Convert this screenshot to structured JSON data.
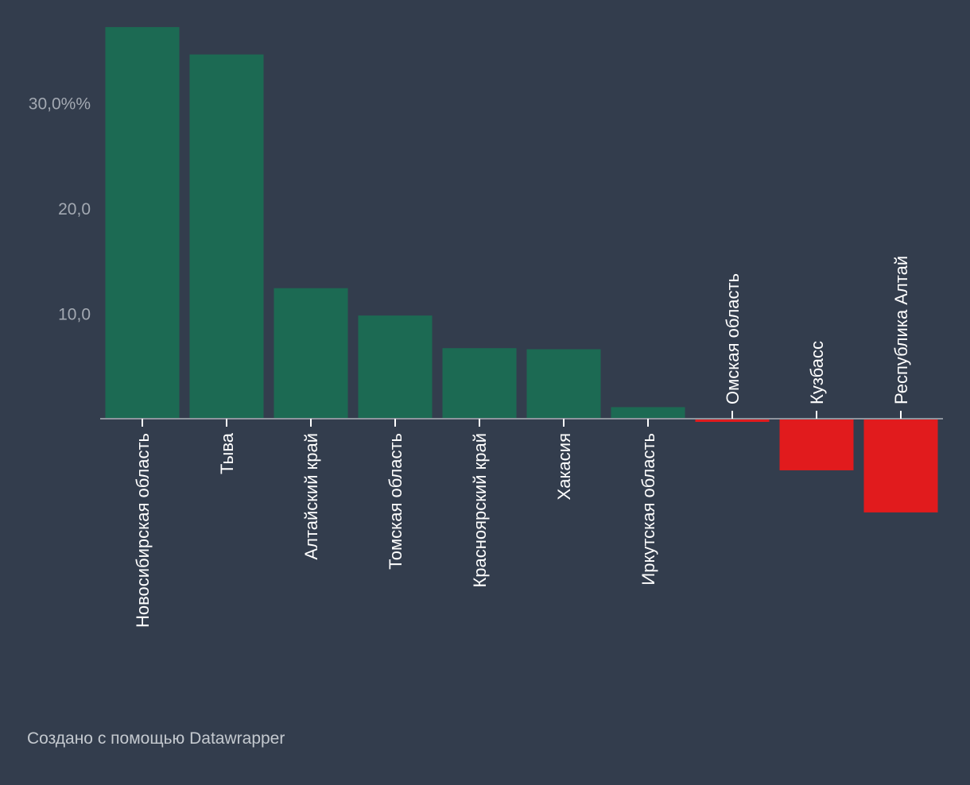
{
  "chart_data": {
    "type": "bar",
    "title": "",
    "xlabel": "",
    "ylabel": "",
    "ylim": [
      -9.5,
      37.5
    ],
    "grid": false,
    "legend": "none",
    "y_ticks": [
      {
        "value": 10,
        "label": "10,0"
      },
      {
        "value": 20,
        "label": "20,0"
      },
      {
        "value": 30,
        "label": "30,0%%"
      }
    ],
    "categories": [
      "Новосибирская область",
      "Тыва",
      "Алтайский край",
      "Томская область",
      "Красноярский край",
      "Хакасия",
      "Иркутская область",
      "Омская область",
      "Кузбасс",
      "Республика Алтай"
    ],
    "values": [
      37.2,
      34.6,
      12.4,
      9.8,
      6.7,
      6.6,
      1.1,
      -0.3,
      -4.9,
      -8.9
    ]
  },
  "colors": {
    "background": "#333d4d",
    "positive": "#1c6a53",
    "negative": "#e11b1d",
    "axis": "#8e959e",
    "tick_text": "#a3a9b2",
    "label_text": "#ffffff"
  },
  "footer": {
    "credit": "Создано с помощью Datawrapper"
  }
}
